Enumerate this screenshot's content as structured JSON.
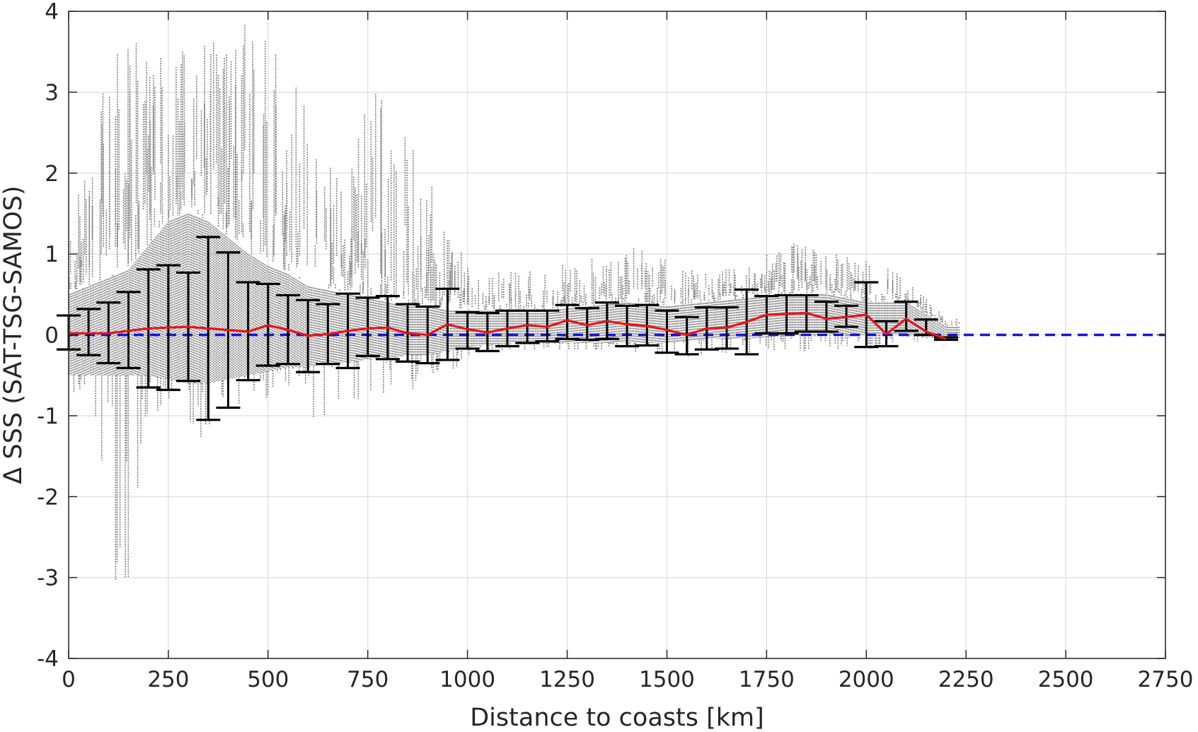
{
  "chart_data": {
    "type": "scatter",
    "title": "",
    "xlabel": "Distance to coasts [km]",
    "ylabel": "Δ SSS (SAT-TSG-SAMOS)",
    "xlim": [
      0,
      2750
    ],
    "ylim": [
      -4,
      4
    ],
    "xticks": [
      0,
      250,
      500,
      750,
      1000,
      1250,
      1500,
      1750,
      2000,
      2250,
      2500,
      2750
    ],
    "yticks": [
      4,
      3,
      2,
      1,
      0,
      -1,
      -2,
      -3,
      -4
    ],
    "grid": true,
    "legend": "none",
    "colors": {
      "scatter": "#808080",
      "errorbar": "#000000",
      "mean_line": "#e8131a",
      "zero_line": "#1414d6",
      "grid": "#dedede",
      "axes": "#262626"
    },
    "scatter_envelope": {
      "note_x": [
        0,
        50,
        100,
        150,
        200,
        250,
        300,
        350,
        400,
        450,
        500,
        550,
        600,
        650,
        700,
        750,
        800,
        850,
        900,
        950,
        1000,
        1100,
        1200,
        1300,
        1400,
        1500,
        1600,
        1700,
        1800,
        1900,
        2000,
        2100,
        2200
      ],
      "upper": [
        1.2,
        2.4,
        3.5,
        3.6,
        4.0,
        4.0,
        3.4,
        4.0,
        3.6,
        4.0,
        4.0,
        3.5,
        2.9,
        2.2,
        1.9,
        3.2,
        2.9,
        2.9,
        2.0,
        1.3,
        0.9,
        0.8,
        0.8,
        1.0,
        1.1,
        0.95,
        0.8,
        0.85,
        1.2,
        1.0,
        1.0,
        0.7,
        0.2
      ],
      "lower": [
        -0.8,
        -0.7,
        -3.5,
        -3.1,
        -1.0,
        -0.9,
        -1.2,
        -1.5,
        -1.1,
        -0.9,
        -0.8,
        -0.8,
        -0.8,
        -2.0,
        -1.1,
        -1.35,
        -0.6,
        -0.85,
        -0.6,
        -0.5,
        -0.3,
        -0.2,
        -0.2,
        -0.2,
        -0.2,
        -0.3,
        -0.25,
        -0.25,
        -0.2,
        -0.2,
        -0.2,
        -0.1,
        -0.05
      ],
      "core_upper": [
        0.5,
        0.6,
        0.7,
        0.8,
        1.1,
        1.4,
        1.5,
        1.4,
        1.2,
        1.0,
        0.85,
        0.75,
        0.6,
        0.55,
        0.5,
        0.45,
        0.4,
        0.35,
        0.35,
        0.3,
        0.3,
        0.3,
        0.3,
        0.35,
        0.4,
        0.35,
        0.4,
        0.45,
        0.5,
        0.5,
        0.4,
        0.4,
        0.1
      ],
      "core_lower": [
        -0.5,
        -0.5,
        -0.5,
        -0.5,
        -0.5,
        -0.55,
        -0.6,
        -0.6,
        -0.55,
        -0.5,
        -0.45,
        -0.4,
        -0.4,
        -0.35,
        -0.35,
        -0.3,
        -0.3,
        -0.25,
        -0.25,
        -0.2,
        -0.15,
        -0.1,
        -0.1,
        -0.1,
        -0.1,
        -0.1,
        -0.05,
        -0.05,
        0.0,
        0.0,
        0.0,
        0.0,
        -0.05
      ]
    },
    "series": [
      {
        "x": [
          0,
          50,
          100,
          150,
          200,
          250,
          300,
          350,
          400,
          450,
          500,
          550,
          600,
          650,
          700,
          750,
          800,
          850,
          900,
          950,
          1000,
          1050,
          1100,
          1150,
          1200,
          1250,
          1300,
          1350,
          1400,
          1450,
          1500,
          1550,
          1600,
          1650,
          1700,
          1750,
          1800,
          1850,
          1900,
          1950,
          2000,
          2050,
          2100,
          2150,
          2200
        ],
        "y": [
          0.02,
          0.02,
          0.02,
          0.05,
          0.08,
          0.09,
          0.1,
          0.08,
          0.06,
          0.04,
          0.12,
          0.06,
          -0.01,
          0.01,
          0.05,
          0.08,
          0.09,
          0.02,
          0.0,
          0.13,
          0.07,
          0.03,
          0.08,
          0.12,
          0.1,
          0.18,
          0.12,
          0.17,
          0.13,
          0.11,
          0.06,
          0.0,
          0.08,
          0.09,
          0.16,
          0.25,
          0.26,
          0.27,
          0.2,
          0.22,
          0.25,
          0.01,
          0.2,
          0.04,
          -0.05
        ],
        "err_low": [
          -0.18,
          -0.25,
          -0.35,
          -0.41,
          -0.65,
          -0.68,
          -0.57,
          -1.05,
          -0.9,
          -0.56,
          -0.38,
          -0.36,
          -0.46,
          -0.36,
          -0.41,
          -0.26,
          -0.3,
          -0.33,
          -0.35,
          -0.31,
          -0.17,
          -0.2,
          -0.14,
          -0.1,
          -0.08,
          -0.05,
          -0.06,
          -0.05,
          -0.14,
          -0.13,
          -0.22,
          -0.24,
          -0.18,
          -0.17,
          -0.24,
          0.02,
          0.02,
          0.04,
          0.04,
          0.1,
          -0.15,
          -0.14,
          0.05,
          0.0,
          -0.06
        ],
        "err_high": [
          0.24,
          0.32,
          0.4,
          0.53,
          0.81,
          0.86,
          0.77,
          1.21,
          1.02,
          0.65,
          0.63,
          0.49,
          0.43,
          0.38,
          0.51,
          0.46,
          0.48,
          0.38,
          0.35,
          0.57,
          0.28,
          0.27,
          0.3,
          0.3,
          0.3,
          0.37,
          0.33,
          0.4,
          0.36,
          0.37,
          0.3,
          0.22,
          0.34,
          0.34,
          0.56,
          0.48,
          0.49,
          0.49,
          0.41,
          0.36,
          0.65,
          0.17,
          0.41,
          0.19,
          -0.03
        ]
      }
    ],
    "reference_line": {
      "y": 0,
      "style": "dashed"
    }
  }
}
